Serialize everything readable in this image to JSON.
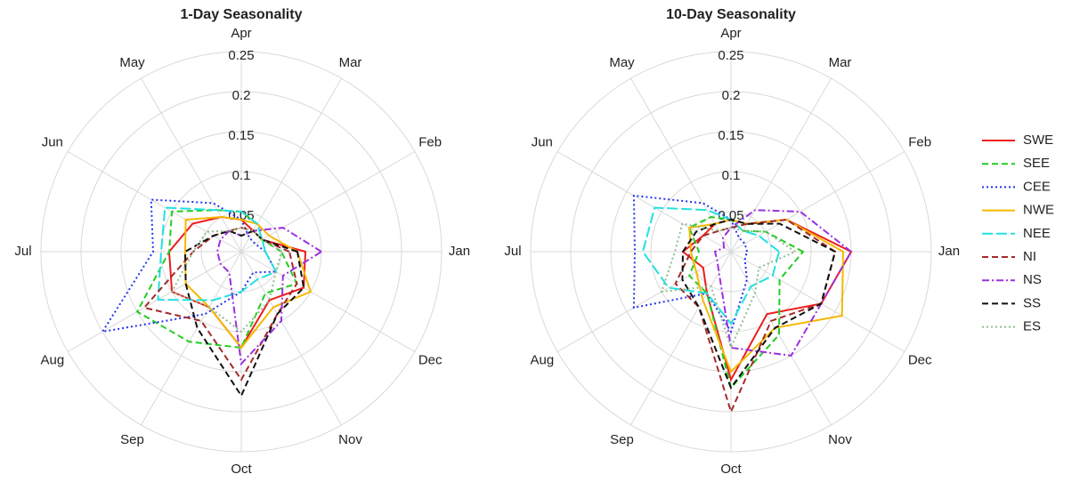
{
  "chart_data": [
    {
      "type": "radar",
      "title": "1-Day Seasonality",
      "categories": [
        "Jan",
        "Feb",
        "Mar",
        "Apr",
        "May",
        "Jun",
        "Jul",
        "Aug",
        "Sep",
        "Oct",
        "Nov",
        "Dec"
      ],
      "ylim": [
        0,
        0.25
      ],
      "yticks": [
        0.05,
        0.1,
        0.15,
        0.2,
        0.25
      ],
      "grid": true,
      "series": [
        {
          "color": "#ee1c1c",
          "dash": "solid",
          "values": [
            0.08,
            0.03,
            0.03,
            0.04,
            0.05,
            0.07,
            0.09,
            0.1,
            0.08,
            0.12,
            0.07,
            0.09
          ]
        },
        {
          "color": "#22cc22",
          "dash": "dashed",
          "values": [
            0.05,
            0.03,
            0.04,
            0.05,
            0.06,
            0.1,
            0.09,
            0.15,
            0.13,
            0.12,
            0.06,
            0.08
          ]
        },
        {
          "color": "#2233ee",
          "dash": "dotted",
          "values": [
            0.03,
            0.02,
            0.02,
            0.04,
            0.07,
            0.13,
            0.11,
            0.2,
            0.09,
            0.05,
            0.03,
            0.05
          ]
        },
        {
          "color": "#f5b800",
          "dash": "solid",
          "values": [
            0.07,
            0.04,
            0.04,
            0.04,
            0.05,
            0.08,
            0.07,
            0.08,
            0.08,
            0.12,
            0.08,
            0.1
          ]
        },
        {
          "color": "#22e0e0",
          "dash": "longdash",
          "values": [
            0.03,
            0.03,
            0.04,
            0.05,
            0.06,
            0.11,
            0.1,
            0.12,
            0.07,
            0.05,
            0.04,
            0.05
          ]
        },
        {
          "color": "#a52a2a",
          "dash": "dashed",
          "values": [
            0.06,
            0.03,
            0.03,
            0.03,
            0.03,
            0.04,
            0.06,
            0.14,
            0.1,
            0.16,
            0.09,
            0.08
          ]
        },
        {
          "color": "#9b30e0",
          "dash": "dashdot",
          "values": [
            0.1,
            0.06,
            0.03,
            0.02,
            0.03,
            0.03,
            0.03,
            0.03,
            0.03,
            0.14,
            0.1,
            0.06
          ]
        },
        {
          "color": "#111111",
          "dash": "dashed",
          "values": [
            0.07,
            0.03,
            0.03,
            0.02,
            0.03,
            0.04,
            0.07,
            0.08,
            0.11,
            0.18,
            0.09,
            0.09
          ]
        },
        {
          "color": "#8fbc8f",
          "dash": "dotted",
          "values": [
            0.05,
            0.03,
            0.03,
            0.03,
            0.03,
            0.05,
            0.06,
            0.1,
            0.08,
            0.1,
            0.07,
            0.05
          ]
        }
      ]
    },
    {
      "type": "radar",
      "title": "10-Day Seasonality",
      "categories": [
        "Jan",
        "Feb",
        "Mar",
        "Apr",
        "May",
        "Jun",
        "Jul",
        "Aug",
        "Sep",
        "Oct",
        "Nov",
        "Dec"
      ],
      "ylim": [
        0,
        0.25
      ],
      "yticks": [
        0.05,
        0.1,
        0.15,
        0.2,
        0.25
      ],
      "grid": true,
      "legend": "right",
      "series": [
        {
          "name": "SWE",
          "color": "#ee1c1c",
          "dash": "solid",
          "values": [
            0.15,
            0.08,
            0.04,
            0.04,
            0.04,
            0.04,
            0.06,
            0.04,
            0.06,
            0.16,
            0.09,
            0.13
          ]
        },
        {
          "name": "SEE",
          "color": "#22cc22",
          "dash": "dashed",
          "values": [
            0.09,
            0.05,
            0.03,
            0.04,
            0.05,
            0.06,
            0.04,
            0.06,
            0.06,
            0.17,
            0.12,
            0.07
          ]
        },
        {
          "name": "CEE",
          "color": "#2233ee",
          "dash": "dotted",
          "values": [
            0.02,
            0.02,
            0.02,
            0.04,
            0.07,
            0.14,
            0.12,
            0.14,
            0.06,
            0.1,
            0.04,
            0.02
          ]
        },
        {
          "name": "NWE",
          "color": "#f5b800",
          "dash": "solid",
          "values": [
            0.14,
            0.08,
            0.04,
            0.04,
            0.04,
            0.06,
            0.05,
            0.05,
            0.07,
            0.15,
            0.11,
            0.16
          ]
        },
        {
          "name": "NEE",
          "color": "#22e0e0",
          "dash": "longdash",
          "values": [
            0.06,
            0.04,
            0.03,
            0.04,
            0.06,
            0.11,
            0.11,
            0.09,
            0.06,
            0.09,
            0.05,
            0.06
          ]
        },
        {
          "name": "NI",
          "color": "#a52a2a",
          "dash": "dashed",
          "values": [
            0.13,
            0.08,
            0.04,
            0.03,
            0.03,
            0.04,
            0.05,
            0.08,
            0.08,
            0.2,
            0.1,
            0.13
          ]
        },
        {
          "name": "NS",
          "color": "#9b30e0",
          "dash": "dashdot",
          "values": [
            0.15,
            0.1,
            0.06,
            0.03,
            0.02,
            0.01,
            0.02,
            0.02,
            0.03,
            0.12,
            0.15,
            0.13
          ]
        },
        {
          "name": "SS",
          "color": "#111111",
          "dash": "dashed",
          "values": [
            0.13,
            0.07,
            0.04,
            0.04,
            0.04,
            0.05,
            0.06,
            0.07,
            0.08,
            0.17,
            0.11,
            0.13
          ]
        },
        {
          "name": "ES",
          "color": "#8fbc8f",
          "dash": "dotted",
          "values": [
            0.08,
            0.05,
            0.03,
            0.03,
            0.03,
            0.07,
            0.07,
            0.1,
            0.05,
            0.12,
            0.06,
            0.04
          ]
        }
      ]
    }
  ]
}
